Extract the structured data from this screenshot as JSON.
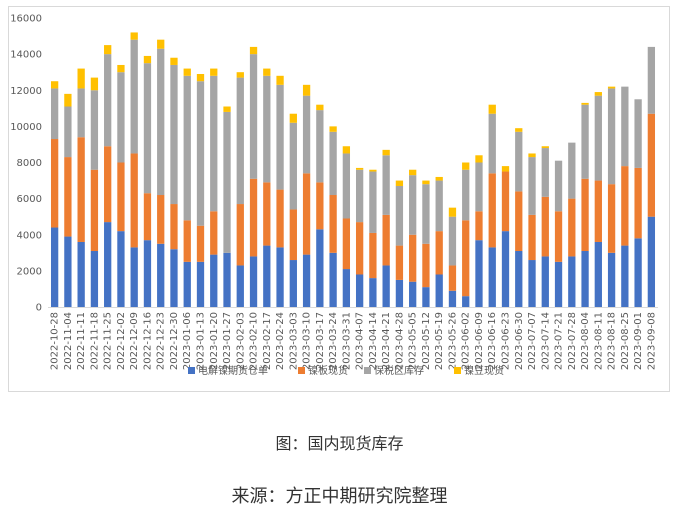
{
  "captions": {
    "figure": "图：国内现货库存",
    "source": "来源：方正中期研究院整理"
  },
  "chart_data": {
    "type": "bar",
    "stacked": true,
    "title": "",
    "xlabel": "",
    "ylabel": "",
    "ylim": [
      0,
      16000
    ],
    "yticks": [
      0,
      2000,
      4000,
      6000,
      8000,
      10000,
      12000,
      14000,
      16000
    ],
    "grid": false,
    "legend_position": "bottom",
    "categories": [
      "2022-10-28",
      "2022-11-04",
      "2022-11-11",
      "2022-11-18",
      "2022-11-25",
      "2022-12-02",
      "2022-12-09",
      "2022-12-16",
      "2022-12-23",
      "2022-12-30",
      "2023-01-06",
      "2023-01-13",
      "2023-01-20",
      "2023-01-27",
      "2023-02-03",
      "2023-02-10",
      "2023-02-17",
      "2023-02-24",
      "2023-03-03",
      "2023-03-10",
      "2023-03-17",
      "2023-03-24",
      "2023-03-31",
      "2023-04-07",
      "2023-04-14",
      "2023-04-21",
      "2023-04-28",
      "2023-05-05",
      "2023-05-12",
      "2023-05-19",
      "2023-05-26",
      "2023-06-02",
      "2023-06-09",
      "2023-06-16",
      "2023-06-23",
      "2023-06-30",
      "2023-07-07",
      "2023-07-14",
      "2023-07-21",
      "2023-07-28",
      "2023-08-04",
      "2023-08-11",
      "2023-08-18",
      "2023-08-25",
      "2023-09-01",
      "2023-09-08"
    ],
    "label_every": 1,
    "series": [
      {
        "name": "电解镍期货仓单",
        "color": "#4472c4",
        "values": [
          4400,
          3900,
          3600,
          3100,
          4700,
          4200,
          3300,
          3700,
          3500,
          3200,
          2500,
          2500,
          2900,
          3000,
          2300,
          2800,
          3400,
          3300,
          2600,
          2900,
          4300,
          3000,
          2100,
          1800,
          1600,
          2300,
          1500,
          1400,
          1100,
          1800,
          900,
          600,
          3700,
          3300,
          4200,
          3100,
          2600,
          2800,
          2500,
          2800,
          3100,
          3600,
          3000,
          3400,
          3800,
          5000
        ]
      },
      {
        "name": "镍板现货",
        "color": "#ed7d31",
        "values": [
          4900,
          4400,
          5800,
          4500,
          4200,
          3800,
          5200,
          2600,
          2700,
          2500,
          2300,
          2000,
          2400,
          0,
          3400,
          4300,
          3500,
          3200,
          2800,
          4500,
          2600,
          3200,
          2800,
          2900,
          2500,
          2800,
          1900,
          2600,
          2400,
          2400,
          1400,
          4200,
          1600,
          4100,
          3300,
          3300,
          2500,
          3300,
          2800,
          3200,
          4000,
          3400,
          3800,
          4400,
          3900,
          5700
        ]
      },
      {
        "name": "保税区库存",
        "color": "#a5a5a5",
        "values": [
          2800,
          2800,
          2700,
          4400,
          5100,
          5000,
          6300,
          7200,
          8100,
          7700,
          8000,
          8000,
          7500,
          7800,
          7000,
          6900,
          5900,
          5800,
          4800,
          4300,
          4000,
          3500,
          3600,
          2900,
          3400,
          3300,
          3300,
          3300,
          3300,
          2800,
          2700,
          2800,
          2700,
          3300,
          0,
          3300,
          3200,
          2700,
          2800,
          3100,
          4100,
          4700,
          5300,
          4400,
          3800,
          3700
        ]
      },
      {
        "name": "镍豆现货",
        "color": "#ffc000",
        "values": [
          400,
          700,
          1100,
          700,
          500,
          400,
          400,
          400,
          500,
          400,
          400,
          400,
          400,
          300,
          300,
          400,
          400,
          500,
          500,
          600,
          300,
          300,
          400,
          100,
          100,
          300,
          300,
          300,
          200,
          200,
          500,
          400,
          400,
          500,
          300,
          200,
          200,
          100,
          0,
          0,
          100,
          200,
          100,
          0,
          0,
          0
        ]
      }
    ]
  }
}
